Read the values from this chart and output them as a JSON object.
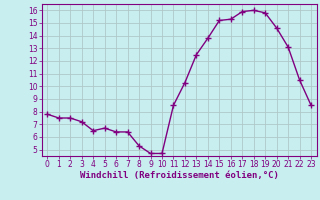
{
  "x": [
    0,
    1,
    2,
    3,
    4,
    5,
    6,
    7,
    8,
    9,
    10,
    11,
    12,
    13,
    14,
    15,
    16,
    17,
    18,
    19,
    20,
    21,
    22,
    23
  ],
  "y": [
    7.8,
    7.5,
    7.5,
    7.2,
    6.5,
    6.7,
    6.4,
    6.4,
    5.3,
    4.7,
    4.7,
    8.5,
    10.3,
    12.5,
    13.8,
    15.2,
    15.3,
    15.9,
    16.0,
    15.8,
    14.6,
    13.1,
    10.5,
    8.5
  ],
  "line_color": "#800080",
  "marker": "+",
  "markersize": 4,
  "linewidth": 1.0,
  "xlabel": "Windchill (Refroidissement éolien,°C)",
  "xlabel_fontsize": 6.5,
  "bg_color": "#c8eef0",
  "grid_color": "#b0c8c8",
  "ylim": [
    4.5,
    16.5
  ],
  "xlim": [
    -0.5,
    23.5
  ],
  "yticks": [
    5,
    6,
    7,
    8,
    9,
    10,
    11,
    12,
    13,
    14,
    15,
    16
  ],
  "xticks": [
    0,
    1,
    2,
    3,
    4,
    5,
    6,
    7,
    8,
    9,
    10,
    11,
    12,
    13,
    14,
    15,
    16,
    17,
    18,
    19,
    20,
    21,
    22,
    23
  ],
  "tick_fontsize": 5.5,
  "tick_color": "#800080",
  "spine_color": "#800080"
}
